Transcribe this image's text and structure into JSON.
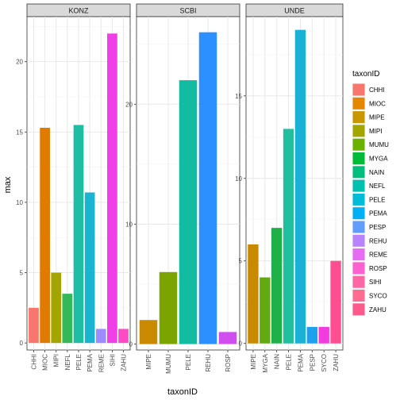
{
  "chart_data": {
    "type": "bar",
    "xlabel": "taxonID",
    "ylabel": "max",
    "legend": {
      "title": "taxonID",
      "placement": "right",
      "entries": [
        {
          "name": "CHHI",
          "color": "#F8766D"
        },
        {
          "name": "MIOC",
          "color": "#E58700"
        },
        {
          "name": "MIPE",
          "color": "#C99800"
        },
        {
          "name": "MIPI",
          "color": "#A3A500"
        },
        {
          "name": "MUMU",
          "color": "#6BB100"
        },
        {
          "name": "MYGA",
          "color": "#00BA38"
        },
        {
          "name": "NAIN",
          "color": "#00BF7D"
        },
        {
          "name": "NEFL",
          "color": "#00C0AF"
        },
        {
          "name": "PELE",
          "color": "#00BCD8"
        },
        {
          "name": "PEMA",
          "color": "#00B0F6"
        },
        {
          "name": "PESP",
          "color": "#619CFF"
        },
        {
          "name": "REHU",
          "color": "#B983FF"
        },
        {
          "name": "REME",
          "color": "#E76BF3"
        },
        {
          "name": "ROSP",
          "color": "#FD61D1"
        },
        {
          "name": "SIHI",
          "color": "#FF67A4"
        },
        {
          "name": "SYCO",
          "color": "#FF6C91"
        },
        {
          "name": "ZAHU",
          "color": "#FF5A8C"
        }
      ]
    },
    "panels": [
      {
        "title": "KONZ",
        "ylim": [
          -0.5,
          23.2
        ],
        "yticks": [
          0,
          5,
          10,
          15,
          20
        ],
        "categories": [
          "CHHI",
          "MIOC",
          "MIPI",
          "NEFL",
          "PELE",
          "PEMA",
          "REME",
          "SIHI",
          "ZAHU"
        ],
        "values": [
          2.5,
          15.3,
          5,
          3.5,
          15.5,
          10.7,
          1,
          22,
          1
        ],
        "colors": [
          "#F8766D",
          "#E07A00",
          "#A3A500",
          "#34B85A",
          "#1FBEA4",
          "#1AB4D0",
          "#9B8CFF",
          "#F03FE6",
          "#FF4AC8"
        ]
      },
      {
        "title": "SCBI",
        "ylim": [
          -0.5,
          27.3
        ],
        "yticks": [
          0,
          10,
          20
        ],
        "categories": [
          "MIPE",
          "MUMU",
          "PELE",
          "REHU",
          "ROSP"
        ],
        "values": [
          2,
          6,
          22,
          26,
          1
        ],
        "colors": [
          "#C98900",
          "#7CA400",
          "#12BBA1",
          "#2C90FF",
          "#D04EF0"
        ]
      },
      {
        "title": "UNDE",
        "ylim": [
          -0.4,
          19.8
        ],
        "yticks": [
          0,
          5,
          10,
          15
        ],
        "categories": [
          "MIPE",
          "MYGA",
          "NAIN",
          "PELE",
          "PEMA",
          "PESP",
          "SYCO",
          "ZAHU"
        ],
        "values": [
          6,
          4,
          7,
          13,
          19,
          1,
          1,
          5
        ],
        "colors": [
          "#C98900",
          "#63AA10",
          "#1FB04A",
          "#1FBFA0",
          "#19B2D6",
          "#1EA0F0",
          "#F23CE0",
          "#FF4F90"
        ]
      }
    ]
  }
}
